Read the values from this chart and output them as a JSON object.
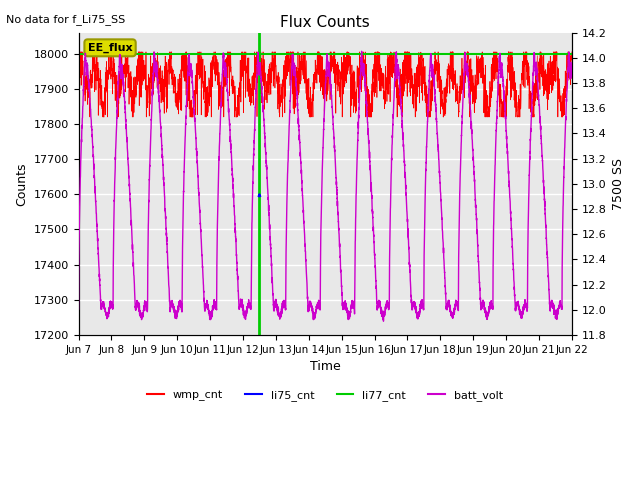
{
  "title": "Flux Counts",
  "top_left_text": "No data for f_Li75_SS",
  "xlabel": "Time",
  "ylabel_left": "Counts",
  "ylabel_right": "7500 SS",
  "ylim_left": [
    17200,
    18060
  ],
  "ylim_right": [
    11.8,
    14.2
  ],
  "x_tick_labels": [
    "Jun 7",
    "Jun 8",
    "Jun 9",
    "Jun 10",
    "Jun 11",
    "Jun 12",
    "Jun 13",
    "Jun 14",
    "Jun 15",
    "Jun 16",
    "Jun 17",
    "Jun 18",
    "Jun 19",
    "Jun 20",
    "Jun 21",
    "Jun 22"
  ],
  "annotation_text": "EE_flux",
  "wmp_color": "#FF0000",
  "li75_color": "#0000FF",
  "li77_color": "#00CC00",
  "batt_color": "#CC00CC",
  "background_color": "#E8E8E8",
  "wmp_base": 17970,
  "wmp_noise_std": 30,
  "li77_value": 18000,
  "batt_base": 12.0,
  "batt_peak": 13.95,
  "num_days": 15,
  "vertical_line_x": 5.5,
  "y_ticks_left": [
    17200,
    17300,
    17400,
    17500,
    17600,
    17700,
    17800,
    17900,
    18000
  ],
  "y_ticks_right": [
    11.8,
    12.0,
    12.2,
    12.4,
    12.6,
    12.8,
    13.0,
    13.2,
    13.4,
    13.6,
    13.8,
    14.0,
    14.2
  ]
}
